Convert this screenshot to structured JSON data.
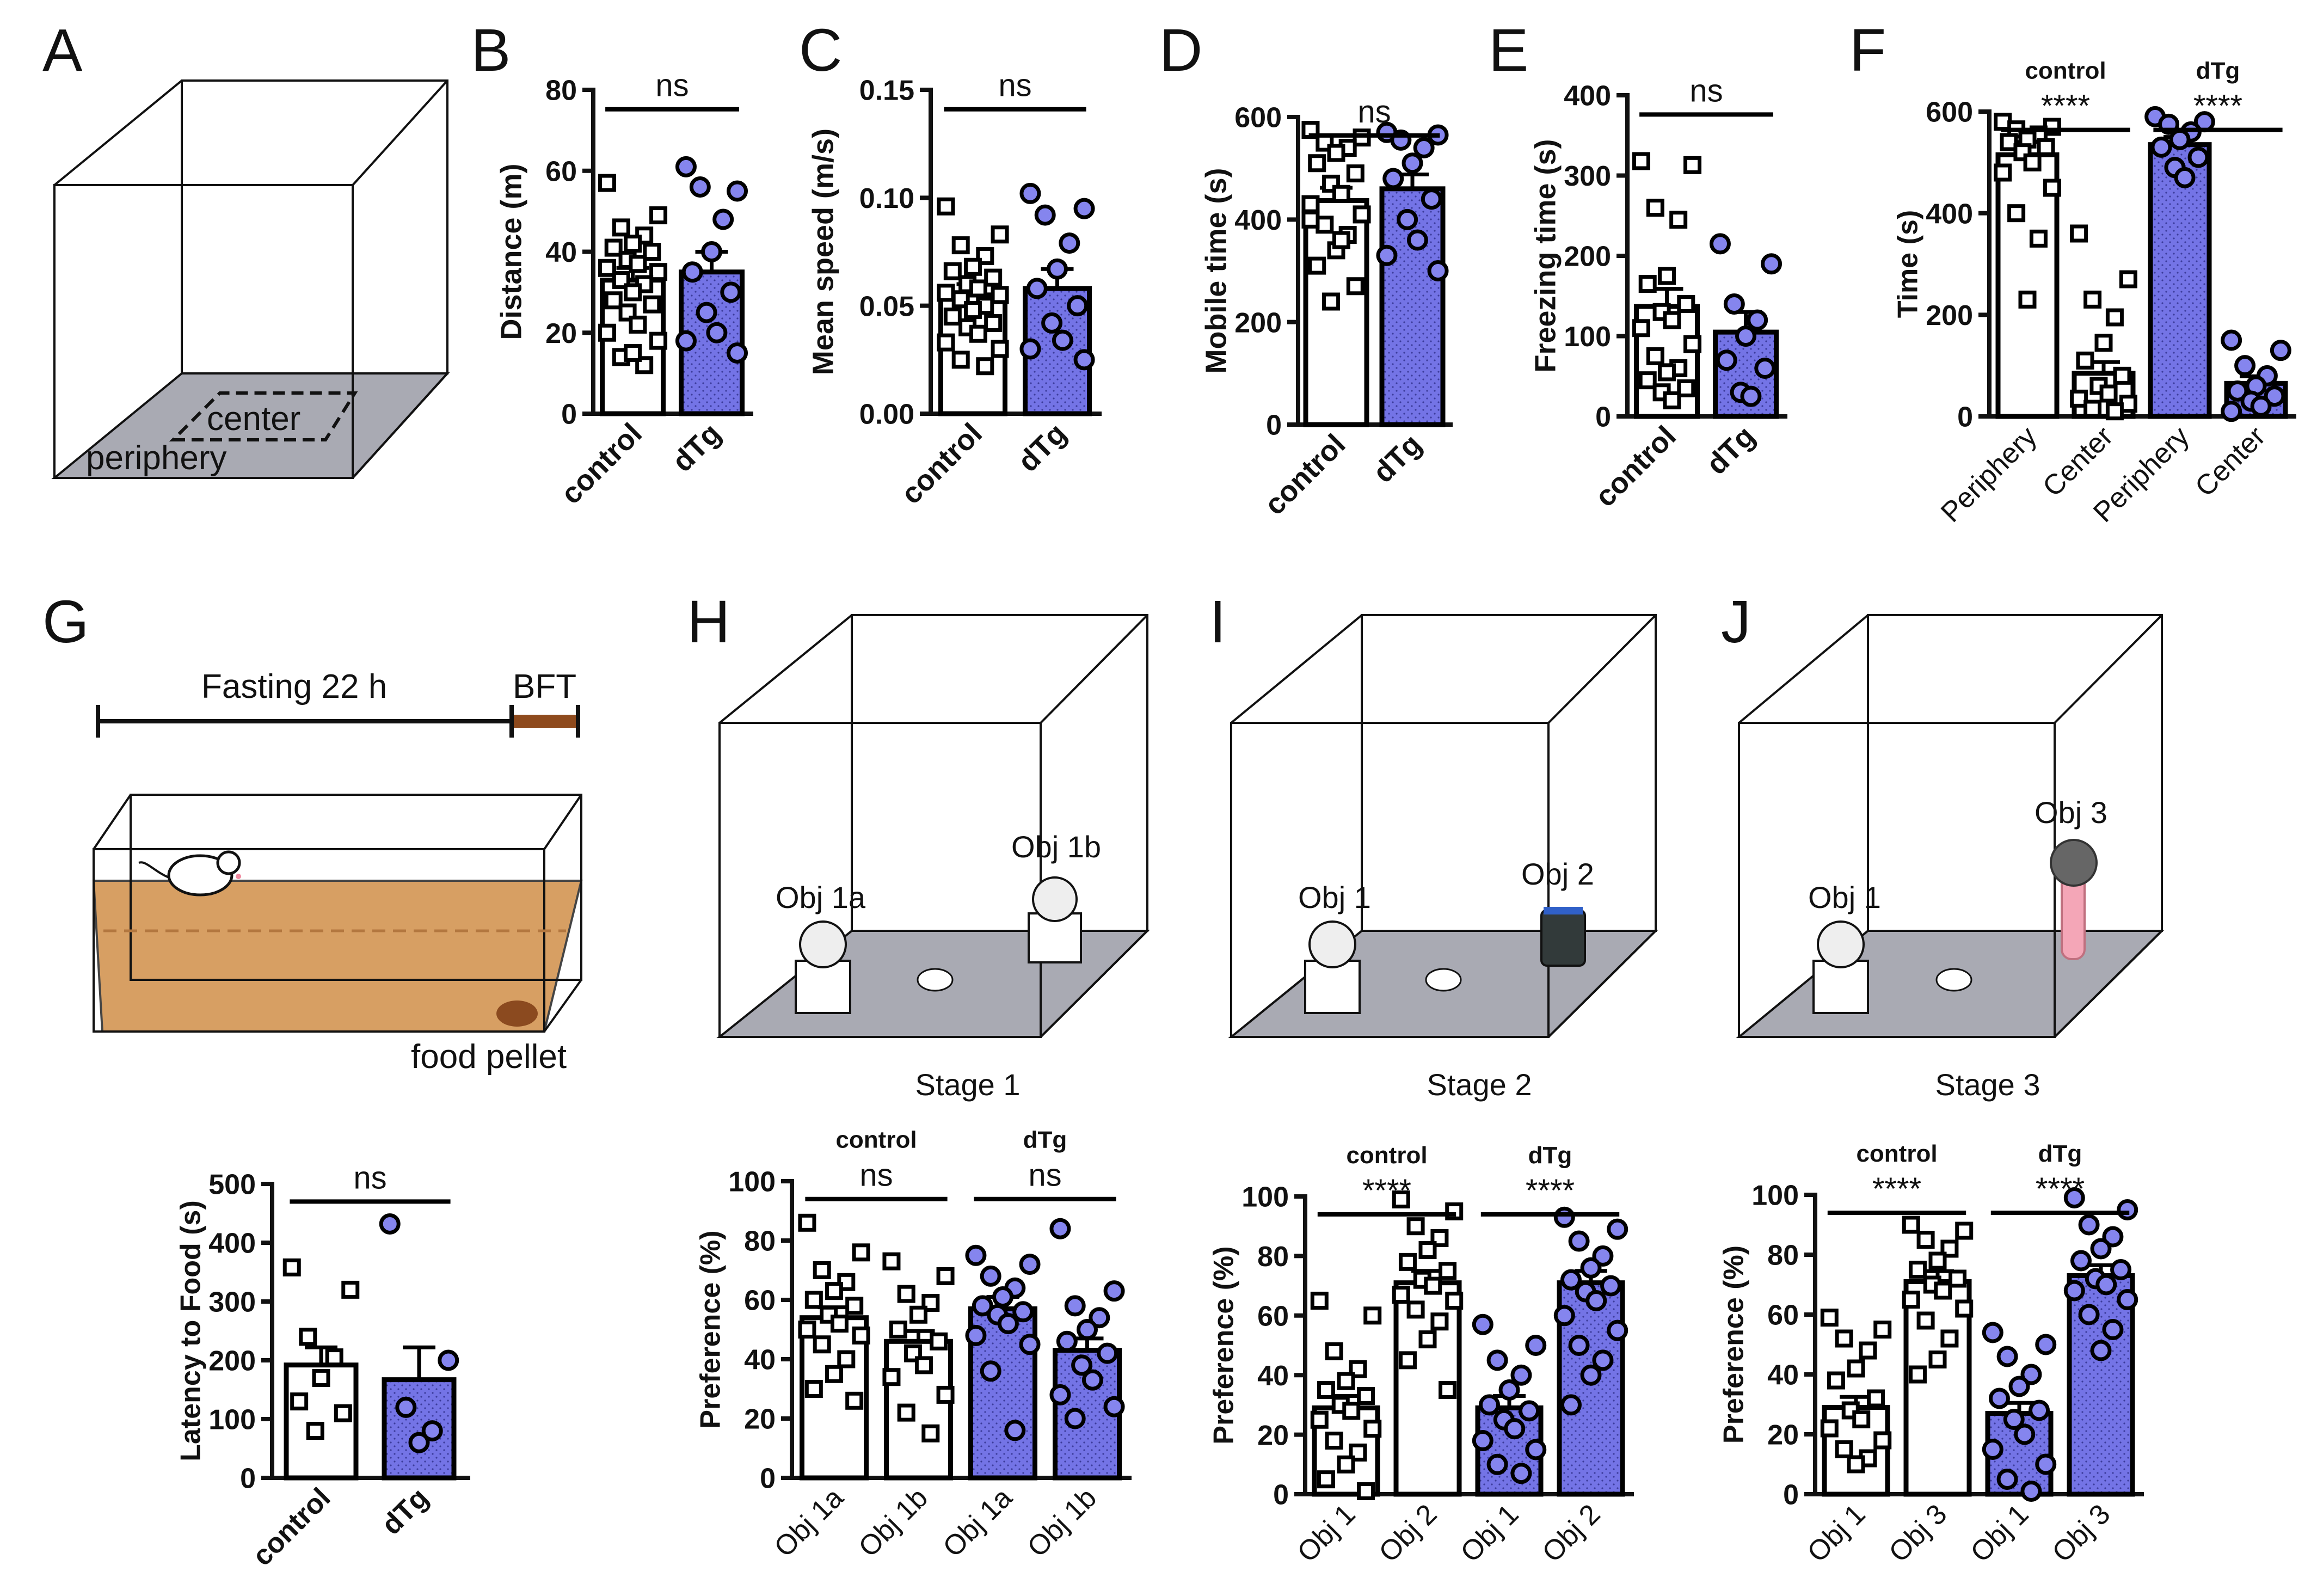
{
  "colors": {
    "control_bar": "#ffffff",
    "dtg_bar": "#7474e6",
    "dtg_point": "#8585ee",
    "floor": "#a9aab3",
    "bedding": "#d79f63",
    "bft_bar": "#8e4a1d",
    "pellet": "#8b4a1f",
    "pink_object": "#f4a6b7",
    "dark_object": "#323a3a"
  },
  "panels": {
    "A": {
      "letter": "A",
      "center_label": "center",
      "periphery_label": "periphery"
    },
    "G": {
      "letter": "G",
      "fasting_label": "Fasting 22 h",
      "bft_label": "BFT",
      "pellet_label": "food pellet"
    },
    "H": {
      "letter": "H",
      "stage_label": "Stage 1",
      "obj_left": "Obj 1a",
      "obj_right": "Obj 1b"
    },
    "I": {
      "letter": "I",
      "stage_label": "Stage 2",
      "obj_left": "Obj 1",
      "obj_right": "Obj 2"
    },
    "J": {
      "letter": "J",
      "stage_label": "Stage 3",
      "obj_left": "Obj 1",
      "obj_right": "Obj 3"
    }
  },
  "chart_data": [
    {
      "id": "B",
      "type": "bar",
      "letter": "B",
      "ylabel": "Distance (m)",
      "ylim": [
        0,
        80
      ],
      "yticks": [
        "0",
        "20",
        "40",
        "60",
        "80"
      ],
      "categories": [
        "control",
        "dTg"
      ],
      "groups": [
        "control",
        "dTg"
      ],
      "means": [
        33,
        35
      ],
      "sems": [
        3,
        5
      ],
      "points": [
        [
          57,
          49,
          46,
          44,
          42,
          41,
          40,
          38,
          37,
          36,
          35,
          33,
          32,
          30,
          28,
          27,
          25,
          22,
          20,
          18,
          14,
          12,
          15
        ],
        [
          61,
          55,
          56,
          48,
          40,
          35,
          30,
          25,
          20,
          18,
          15
        ]
      ],
      "annotations": [
        {
          "label": "ns",
          "from": 0,
          "to": 1
        }
      ]
    },
    {
      "id": "C",
      "type": "bar",
      "letter": "C",
      "ylabel": "Mean speed (m/s)",
      "ylim": [
        0,
        0.15
      ],
      "yticks": [
        "0.00",
        "0.05",
        "0.10",
        "0.15"
      ],
      "categories": [
        "control",
        "dTg"
      ],
      "groups": [
        "control",
        "dTg"
      ],
      "means": [
        0.055,
        0.058
      ],
      "sems": [
        0.005,
        0.009
      ],
      "points": [
        [
          0.096,
          0.083,
          0.078,
          0.073,
          0.068,
          0.066,
          0.063,
          0.06,
          0.058,
          0.056,
          0.055,
          0.053,
          0.05,
          0.048,
          0.045,
          0.042,
          0.04,
          0.037,
          0.033,
          0.03,
          0.025,
          0.022
        ],
        [
          0.102,
          0.095,
          0.092,
          0.079,
          0.067,
          0.058,
          0.05,
          0.042,
          0.034,
          0.03,
          0.025
        ]
      ],
      "annotations": [
        {
          "label": "ns",
          "from": 0,
          "to": 1
        }
      ]
    },
    {
      "id": "D",
      "type": "bar",
      "letter": "D",
      "ylabel": "Mobile time (s)",
      "ylim": [
        0,
        600
      ],
      "yticks": [
        "0",
        "200",
        "400",
        "600"
      ],
      "categories": [
        "control",
        "dTg"
      ],
      "groups": [
        "control",
        "dTg"
      ],
      "means": [
        437,
        460
      ],
      "sems": [
        25,
        28
      ],
      "points": [
        [
          575,
          560,
          550,
          540,
          530,
          510,
          490,
          470,
          450,
          430,
          410,
          390,
          370,
          340,
          310,
          270,
          240,
          360,
          400
        ],
        [
          570,
          565,
          555,
          540,
          510,
          480,
          440,
          400,
          360,
          330,
          300
        ]
      ],
      "annotations": [
        {
          "label": "ns",
          "from": 0,
          "to": 1
        }
      ]
    },
    {
      "id": "E",
      "type": "bar",
      "letter": "E",
      "ylabel": "Freezing time (s)",
      "ylim": [
        0,
        400
      ],
      "yticks": [
        "0",
        "100",
        "200",
        "300",
        "400"
      ],
      "categories": [
        "control",
        "dTg"
      ],
      "groups": [
        "control",
        "dTg"
      ],
      "means": [
        137,
        105
      ],
      "sems": [
        22,
        25
      ],
      "points": [
        [
          318,
          313,
          260,
          245,
          175,
          165,
          140,
          130,
          120,
          110,
          90,
          75,
          60,
          55,
          45,
          35,
          30,
          20
        ],
        [
          215,
          190,
          140,
          120,
          100,
          70,
          60,
          30,
          25
        ]
      ],
      "annotations": [
        {
          "label": "ns",
          "from": 0,
          "to": 1
        }
      ]
    },
    {
      "id": "F",
      "type": "bar",
      "letter": "F",
      "ylabel": "Time (s)",
      "ylim": [
        0,
        600
      ],
      "yticks": [
        "0",
        "200",
        "400",
        "600"
      ],
      "categories": [
        "Periphery",
        "Center",
        "Periphery",
        "Center"
      ],
      "groups": [
        "control",
        "control",
        "dTg",
        "dTg"
      ],
      "means": [
        515,
        85,
        535,
        65
      ],
      "sems": [
        25,
        22,
        15,
        14
      ],
      "points": [
        [
          580,
          570,
          565,
          555,
          545,
          540,
          530,
          520,
          500,
          480,
          450,
          400,
          350,
          230
        ],
        [
          360,
          270,
          230,
          195,
          145,
          110,
          80,
          60,
          45,
          35,
          25,
          15,
          10
        ],
        [
          590,
          580,
          575,
          560,
          545,
          530,
          510,
          490,
          470
        ],
        [
          150,
          130,
          100,
          80,
          60,
          50,
          40,
          30,
          20,
          10
        ]
      ],
      "annotations": [
        {
          "label": "****",
          "from": 0,
          "to": 1,
          "group_label": "control"
        },
        {
          "label": "****",
          "from": 2,
          "to": 3,
          "group_label": "dTg"
        }
      ]
    },
    {
      "id": "G",
      "type": "bar",
      "letter": "",
      "ylabel": "Latency to Food (s)",
      "ylim": [
        0,
        500
      ],
      "yticks": [
        "0",
        "100",
        "200",
        "300",
        "400",
        "500"
      ],
      "categories": [
        "control",
        "dTg"
      ],
      "groups": [
        "control",
        "dTg"
      ],
      "means": [
        192,
        167
      ],
      "sems": [
        30,
        55
      ],
      "points": [
        [
          358,
          320,
          240,
          205,
          170,
          130,
          110,
          80
        ],
        [
          432,
          200,
          120,
          80,
          60
        ]
      ],
      "annotations": [
        {
          "label": "ns",
          "from": 0,
          "to": 1
        }
      ]
    },
    {
      "id": "H",
      "type": "bar",
      "letter": "",
      "ylabel": "Preference (%)",
      "ylim": [
        0,
        100
      ],
      "yticks": [
        "0",
        "20",
        "40",
        "60",
        "80",
        "100"
      ],
      "categories": [
        "Obj 1a",
        "Obj 1b",
        "Obj 1a",
        "Obj 1b"
      ],
      "groups": [
        "control",
        "control",
        "dTg",
        "dTg"
      ],
      "means": [
        54,
        46,
        57,
        43
      ],
      "sems": [
        3.5,
        3.5,
        4,
        4
      ],
      "points": [
        [
          86,
          76,
          70,
          66,
          63,
          60,
          58,
          55,
          52,
          50,
          48,
          45,
          40,
          35,
          30,
          26
        ],
        [
          73,
          68,
          62,
          59,
          55,
          50,
          46,
          42,
          38,
          34,
          28,
          22,
          15
        ],
        [
          75,
          72,
          68,
          64,
          61,
          58,
          56,
          55,
          52,
          48,
          45,
          36,
          16
        ],
        [
          84,
          63,
          58,
          54,
          50,
          46,
          42,
          38,
          33,
          28,
          24,
          20
        ]
      ],
      "annotations": [
        {
          "label": "ns",
          "from": 0,
          "to": 1,
          "group_label": "control"
        },
        {
          "label": "ns",
          "from": 2,
          "to": 3,
          "group_label": "dTg"
        }
      ]
    },
    {
      "id": "I",
      "type": "bar",
      "letter": "",
      "ylabel": "Preference (%)",
      "ylim": [
        0,
        100
      ],
      "yticks": [
        "0",
        "20",
        "40",
        "60",
        "80",
        "100"
      ],
      "categories": [
        "Obj 1",
        "Obj 2",
        "Obj 1",
        "Obj 2"
      ],
      "groups": [
        "control",
        "control",
        "dTg",
        "dTg"
      ],
      "means": [
        29,
        71,
        29,
        71
      ],
      "sems": [
        4,
        4,
        4,
        4
      ],
      "points": [
        [
          65,
          60,
          48,
          42,
          38,
          35,
          33,
          30,
          28,
          25,
          22,
          18,
          14,
          10,
          5,
          1
        ],
        [
          99,
          95,
          90,
          86,
          82,
          78,
          75,
          72,
          70,
          67,
          65,
          62,
          58,
          52,
          45,
          35
        ],
        [
          57,
          50,
          45,
          40,
          35,
          30,
          28,
          25,
          22,
          18,
          15,
          10,
          7
        ],
        [
          93,
          89,
          85,
          80,
          76,
          72,
          70,
          68,
          65,
          60,
          55,
          50,
          45,
          40,
          30
        ]
      ],
      "annotations": [
        {
          "label": "****",
          "from": 0,
          "to": 1,
          "group_label": "control"
        },
        {
          "label": "****",
          "from": 2,
          "to": 3,
          "group_label": "dTg"
        }
      ]
    },
    {
      "id": "J",
      "type": "bar",
      "letter": "",
      "ylabel": "Preference (%)",
      "ylim": [
        0,
        100
      ],
      "yticks": [
        "0",
        "20",
        "40",
        "60",
        "80",
        "100"
      ],
      "categories": [
        "Obj 1",
        "Obj 3",
        "Obj 1",
        "Obj 3"
      ],
      "groups": [
        "control",
        "control",
        "dTg",
        "dTg"
      ],
      "means": [
        29,
        71,
        27,
        73
      ],
      "sems": [
        3.5,
        3.5,
        3.5,
        3.5
      ],
      "points": [
        [
          59,
          55,
          52,
          48,
          42,
          38,
          32,
          28,
          25,
          22,
          18,
          15,
          12,
          10
        ],
        [
          90,
          88,
          85,
          82,
          78,
          75,
          72,
          70,
          68,
          65,
          62,
          58,
          52,
          45,
          40
        ],
        [
          54,
          50,
          46,
          40,
          36,
          32,
          28,
          25,
          20,
          15,
          10,
          5,
          1
        ],
        [
          99,
          95,
          90,
          86,
          82,
          78,
          75,
          72,
          70,
          68,
          65,
          60,
          55,
          48
        ]
      ],
      "annotations": [
        {
          "label": "****",
          "from": 0,
          "to": 1,
          "group_label": "control"
        },
        {
          "label": "****",
          "from": 2,
          "to": 3,
          "group_label": "dTg"
        }
      ]
    }
  ]
}
